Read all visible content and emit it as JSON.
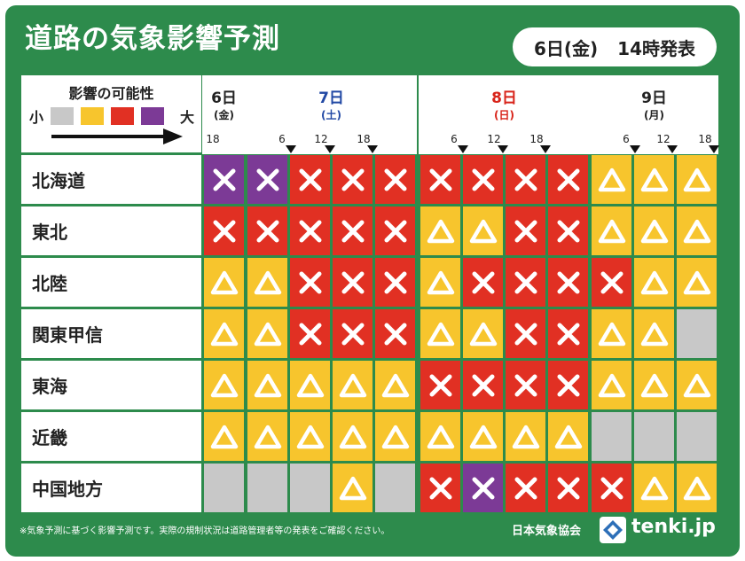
{
  "title": "道路の気象影響予測",
  "issued": {
    "date": "6日(金)",
    "time": "14時発表"
  },
  "legend": {
    "title": "影響の可能性",
    "small": "小",
    "large": "大",
    "colors": [
      "#c8c8c8",
      "#f7c52d",
      "#e13023",
      "#7c3a96"
    ]
  },
  "colors": {
    "gray": "#c8c8c8",
    "yellow": "#f7c52d",
    "red": "#e13023",
    "purple": "#7c3a96",
    "green": "#2d8b4c",
    "sat": "#2148a4",
    "sun": "#d8241a"
  },
  "days": [
    {
      "date": "6日",
      "dow": "(金)",
      "color": "#222222",
      "ticks": [
        "18"
      ]
    },
    {
      "date": "7日",
      "dow": "(土)",
      "color": "#2148a4",
      "ticks": [
        "6",
        "12",
        "18"
      ]
    },
    {
      "date": "8日",
      "dow": "(日)",
      "color": "#d8241a",
      "ticks": [
        "6",
        "12",
        "18"
      ]
    },
    {
      "date": "9日",
      "dow": "(月)",
      "color": "#222222",
      "ticks": [
        "6",
        "12",
        "18"
      ]
    }
  ],
  "regions": [
    {
      "name": "北海道",
      "cells": [
        "P",
        "P",
        "R",
        "R",
        "R",
        "R",
        "R",
        "R",
        "R",
        "Y",
        "Y",
        "Y"
      ]
    },
    {
      "name": "東北",
      "cells": [
        "R",
        "R",
        "R",
        "R",
        "R",
        "Y",
        "Y",
        "R",
        "R",
        "Y",
        "Y",
        "Y"
      ]
    },
    {
      "name": "北陸",
      "cells": [
        "Y",
        "Y",
        "R",
        "R",
        "R",
        "Y",
        "R",
        "R",
        "R",
        "R",
        "Y",
        "Y"
      ]
    },
    {
      "name": "関東甲信",
      "cells": [
        "Y",
        "Y",
        "R",
        "R",
        "R",
        "Y",
        "Y",
        "R",
        "R",
        "Y",
        "Y",
        "G"
      ]
    },
    {
      "name": "東海",
      "cells": [
        "Y",
        "Y",
        "Y",
        "Y",
        "Y",
        "R",
        "R",
        "R",
        "R",
        "Y",
        "Y",
        "Y"
      ]
    },
    {
      "name": "近畿",
      "cells": [
        "Y",
        "Y",
        "Y",
        "Y",
        "Y",
        "Y",
        "Y",
        "Y",
        "Y",
        "G",
        "G",
        "G"
      ]
    },
    {
      "name": "中国地方",
      "cells": [
        "G",
        "G",
        "G",
        "Y",
        "G",
        "R",
        "P",
        "R",
        "R",
        "R",
        "Y",
        "Y"
      ]
    }
  ],
  "footer": {
    "note": "※気象予測に基づく影響予測です。実際の規制状況は道路管理者等の発表をご確認ください。",
    "org": "日本気象協会",
    "brand": "tenki.jp"
  }
}
